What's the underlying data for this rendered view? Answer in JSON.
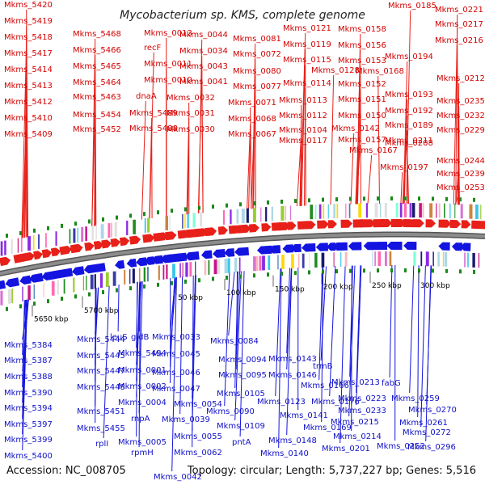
{
  "title": "Mycobacterium sp. KMS, complete genome",
  "accession": "Accession: NC_008705",
  "topology": "Topology: circular; Length: 5,737,227 bp; Genes: 5,516",
  "colors": {
    "forward": "#e8201a",
    "reverse": "#1414e0",
    "backbone": "#8c8c8c",
    "tick": "#1a8a1a",
    "label_forward": "#d40000",
    "label_reverse": "#1010c8"
  },
  "kbp_labels": [
    "5650 kbp",
    "5700 kbp",
    "50 kbp",
    "100 kbp",
    "150 kbp",
    "200 kbp",
    "250 kbp",
    "300 kbp"
  ],
  "top_labels": [
    "Mkms_5420",
    "Mkms_5419",
    "Mkms_5418",
    "Mkms_5417",
    "Mkms_5414",
    "Mkms_5413",
    "Mkms_5412",
    "Mkms_5410",
    "Mkms_5409",
    "Mkms_5468",
    "Mkms_5466",
    "Mkms_5465",
    "Mkms_5464",
    "Mkms_5463",
    "Mkms_5454",
    "Mkms_5452",
    "Mkms_0013",
    "recF",
    "Mkms_0011",
    "Mkms_0010",
    "dnaA",
    "Mkms_5489",
    "Mkms_5488",
    "Mkms_0044",
    "Mkms_0034",
    "Mkms_0043",
    "Mkms_0041",
    "Mkms_0032",
    "Mkms_0031",
    "Mkms_0030",
    "Mkms_0081",
    "Mkms_0072",
    "Mkms_0080",
    "Mkms_0077",
    "Mkms_0071",
    "Mkms_0068",
    "Mkms_0067",
    "Mkms_0121",
    "Mkms_0119",
    "Mkms_0115",
    "Mkms_0114",
    "Mkms_0113",
    "Mkms_0112",
    "Mkms_0104",
    "Mkms_0158",
    "Mkms_0156",
    "Mkms_0153",
    "Mkms_0128",
    "Mkms_0152",
    "Mkms_0151",
    "Mkms_0150",
    "Mkms_0117",
    "Mkms_0168",
    "Mkms_0142",
    "Mkms_0157",
    "Mkms_0167",
    "Mkms_0185",
    "Mkms_0194",
    "Mkms_0193",
    "Mkms_0192",
    "Mkms_0189",
    "Mkms_0208",
    "Mkms_0197",
    "Mkms_0221",
    "Mkms_0217",
    "Mkms_0216",
    "Mkms_0212",
    "Mkms_0235",
    "Mkms_0232",
    "Mkms_0229",
    "Mkms_0211",
    "Mkms_0244",
    "Mkms_0239",
    "Mkms_0253"
  ],
  "bottom_labels": [
    "Mkms_5384",
    "Mkms_5387",
    "Mkms_5388",
    "Mkms_5390",
    "Mkms_5394",
    "Mkms_5397",
    "Mkms_5399",
    "Mkms_5400",
    "Mkms_5444",
    "Mkms_5445",
    "Mkms_5447",
    "Mkms_5448",
    "Mkms_5451",
    "Mkms_5455",
    "rplI",
    "leuS",
    "gidB",
    "Mkms_5494",
    "Mkms_0001",
    "Mkms_0002",
    "Mkms_0004",
    "rnpA",
    "Mkms_0005",
    "rpmH",
    "Mkms_0033",
    "Mkms_0045",
    "Mkms_0046",
    "Mkms_0047",
    "Mkms_0054",
    "Mkms_0039",
    "Mkms_0055",
    "Mkms_0062",
    "Mkms_0042",
    "Mkms_0084",
    "Mkms_0094",
    "Mkms_0095",
    "Mkms_0105",
    "Mkms_0090",
    "Mkms_0109",
    "pntA",
    "Mkms_0143",
    "Mkms_0146",
    "Mkms_0123",
    "Mkms_0141",
    "Mkms_0148",
    "Mkms_0140",
    "trmB",
    "Mkms_0166",
    "Mkms_0176",
    "Mkms_0169",
    "Mkms_0213",
    "Mkms_0223",
    "Mkms_0233",
    "Mkms_0215",
    "Mkms_0214",
    "Mkms_0201",
    "fabG",
    "Mkms_0259",
    "Mkms_0270",
    "Mkms_0261",
    "Mkms_0272",
    "Mkms_0252",
    "Mkms_0296"
  ]
}
